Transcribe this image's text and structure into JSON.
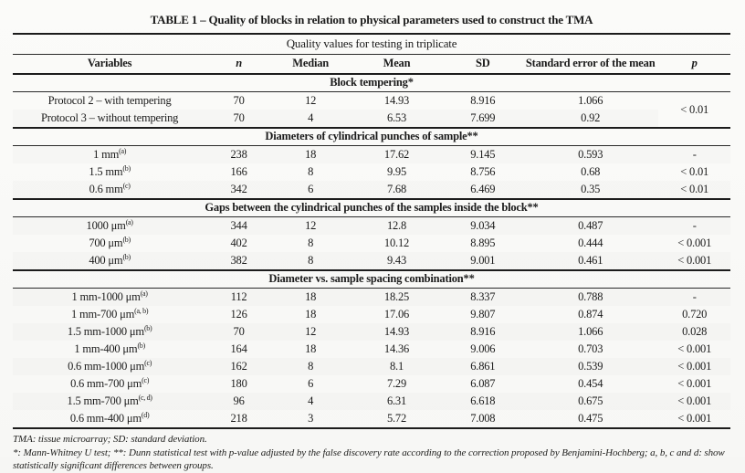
{
  "title": "TABLE 1 – Quality of blocks in relation to physical parameters used to construct the TMA",
  "table": {
    "subtitle": "Quality values for testing in triplicate",
    "columns": [
      "Variables",
      "n",
      "Median",
      "Mean",
      "SD",
      "Standard error of the mean",
      "p"
    ],
    "sections": [
      {
        "header": "Block tempering*",
        "shared_p": "< 0.01",
        "rows": [
          {
            "variable": "Protocol 2 – with tempering",
            "sup": "",
            "n": "70",
            "median": "12",
            "mean": "14.93",
            "sd": "8.916",
            "se": "1.066"
          },
          {
            "variable": "Protocol 3 – without tempering",
            "sup": "",
            "n": "70",
            "median": "4",
            "mean": "6.53",
            "sd": "7.699",
            "se": "0.92"
          }
        ]
      },
      {
        "header": "Diameters of cylindrical punches of sample**",
        "rows": [
          {
            "variable": "1 mm",
            "sup": "(a)",
            "n": "238",
            "median": "18",
            "mean": "17.62",
            "sd": "9.145",
            "se": "0.593",
            "p": "-"
          },
          {
            "variable": "1.5 mm",
            "sup": "(b)",
            "n": "166",
            "median": "8",
            "mean": "9.95",
            "sd": "8.756",
            "se": "0.68",
            "p": "< 0.01"
          },
          {
            "variable": "0.6 mm",
            "sup": "(c)",
            "n": "342",
            "median": "6",
            "mean": "7.68",
            "sd": "6.469",
            "se": "0.35",
            "p": "< 0.01"
          }
        ]
      },
      {
        "header": "Gaps between the cylindrical punches of the samples inside the block**",
        "rows": [
          {
            "variable": "1000 μm",
            "sup": "(a)",
            "n": "344",
            "median": "12",
            "mean": "12.8",
            "sd": "9.034",
            "se": "0.487",
            "p": "-"
          },
          {
            "variable": "700 μm",
            "sup": "(b)",
            "n": "402",
            "median": "8",
            "mean": "10.12",
            "sd": "8.895",
            "se": "0.444",
            "p": "< 0.001"
          },
          {
            "variable": "400 μm",
            "sup": "(b)",
            "n": "382",
            "median": "8",
            "mean": "9.43",
            "sd": "9.001",
            "se": "0.461",
            "p": "< 0.001"
          }
        ]
      },
      {
        "header": "Diameter vs. sample spacing combination**",
        "rows": [
          {
            "variable": "1 mm-1000 μm",
            "sup": "(a)",
            "n": "112",
            "median": "18",
            "mean": "18.25",
            "sd": "8.337",
            "se": "0.788",
            "p": "-"
          },
          {
            "variable": "1 mm-700 μm",
            "sup": "(a, b)",
            "n": "126",
            "median": "18",
            "mean": "17.06",
            "sd": "9.807",
            "se": "0.874",
            "p": "0.720"
          },
          {
            "variable": "1.5 mm-1000 μm",
            "sup": "(b)",
            "n": "70",
            "median": "12",
            "mean": "14.93",
            "sd": "8.916",
            "se": "1.066",
            "p": "0.028"
          },
          {
            "variable": "1 mm-400 μm",
            "sup": "(b)",
            "n": "164",
            "median": "18",
            "mean": "14.36",
            "sd": "9.006",
            "se": "0.703",
            "p": "< 0.001"
          },
          {
            "variable": "0.6 mm-1000 μm",
            "sup": "(c)",
            "n": "162",
            "median": "8",
            "mean": "8.1",
            "sd": "6.861",
            "se": "0.539",
            "p": "< 0.001"
          },
          {
            "variable": "0.6 mm-700 μm",
            "sup": "(c)",
            "n": "180",
            "median": "6",
            "mean": "7.29",
            "sd": "6.087",
            "se": "0.454",
            "p": "< 0.001"
          },
          {
            "variable": "1.5 mm-700 μm",
            "sup": "(c, d)",
            "n": "96",
            "median": "4",
            "mean": "6.31",
            "sd": "6.618",
            "se": "0.675",
            "p": "< 0.001"
          },
          {
            "variable": "0.6 mm-400 μm",
            "sup": "(d)",
            "n": "218",
            "median": "3",
            "mean": "5.72",
            "sd": "7.008",
            "se": "0.475",
            "p": "< 0.001"
          }
        ]
      }
    ]
  },
  "footnotes": [
    "TMA: tissue microarray; SD: standard deviation.",
    "*: Mann-Whitney U test; **: Dunn statistical test with p-value adjusted by the false discovery rate according to the correction proposed by Benjamini-Hochberg; a, b, c and d: show statistically significant differences between groups."
  ],
  "colors": {
    "text": "#1b1b1b",
    "rule": "#1c1c1c",
    "background": "#fbfbf9"
  }
}
